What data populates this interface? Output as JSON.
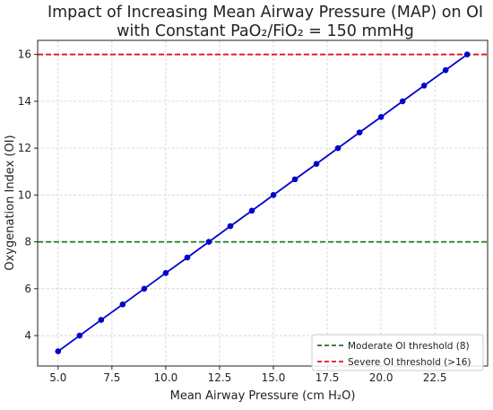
{
  "chart_data": {
    "type": "line",
    "title": "Impact of Increasing Mean Airway Pressure (MAP) on OI",
    "subtitle": "with Constant PaO₂/FiO₂ = 150 mmHg",
    "xlabel": "Mean Airway Pressure (cm H₂O)",
    "ylabel": "Oxygenation Index (OI)",
    "xlim": [
      4.05,
      24.95
    ],
    "ylim": [
      2.7,
      16.6
    ],
    "xticks": [
      5.0,
      7.5,
      10.0,
      12.5,
      15.0,
      17.5,
      20.0,
      22.5
    ],
    "xtick_labels": [
      "5.0",
      "7.5",
      "10.0",
      "12.5",
      "15.0",
      "17.5",
      "20.0",
      "22.5"
    ],
    "yticks": [
      4,
      6,
      8,
      10,
      12,
      14,
      16
    ],
    "ytick_labels": [
      "4",
      "6",
      "8",
      "10",
      "12",
      "14",
      "16"
    ],
    "grid": true,
    "legend_position": "bottom-right",
    "series": [
      {
        "color": "#0000cc",
        "marker": "circle",
        "x": [
          5,
          6,
          7,
          8,
          9,
          10,
          11,
          12,
          13,
          14,
          15,
          16,
          17,
          18,
          19,
          20,
          21,
          22,
          23,
          24
        ],
        "y": [
          3.33,
          4.0,
          4.67,
          5.33,
          6.0,
          6.67,
          7.33,
          8.0,
          8.67,
          9.33,
          10.0,
          10.67,
          11.33,
          12.0,
          12.67,
          13.33,
          14.0,
          14.67,
          15.33,
          16.0
        ]
      }
    ],
    "reference_lines": [
      {
        "name": "Moderate OI threshold (8)",
        "y": 8,
        "color": "#1a7a1a",
        "style": "dashed"
      },
      {
        "name": "Severe OI threshold (>16)",
        "y": 16,
        "color": "#ee1111",
        "style": "dashed"
      }
    ]
  }
}
